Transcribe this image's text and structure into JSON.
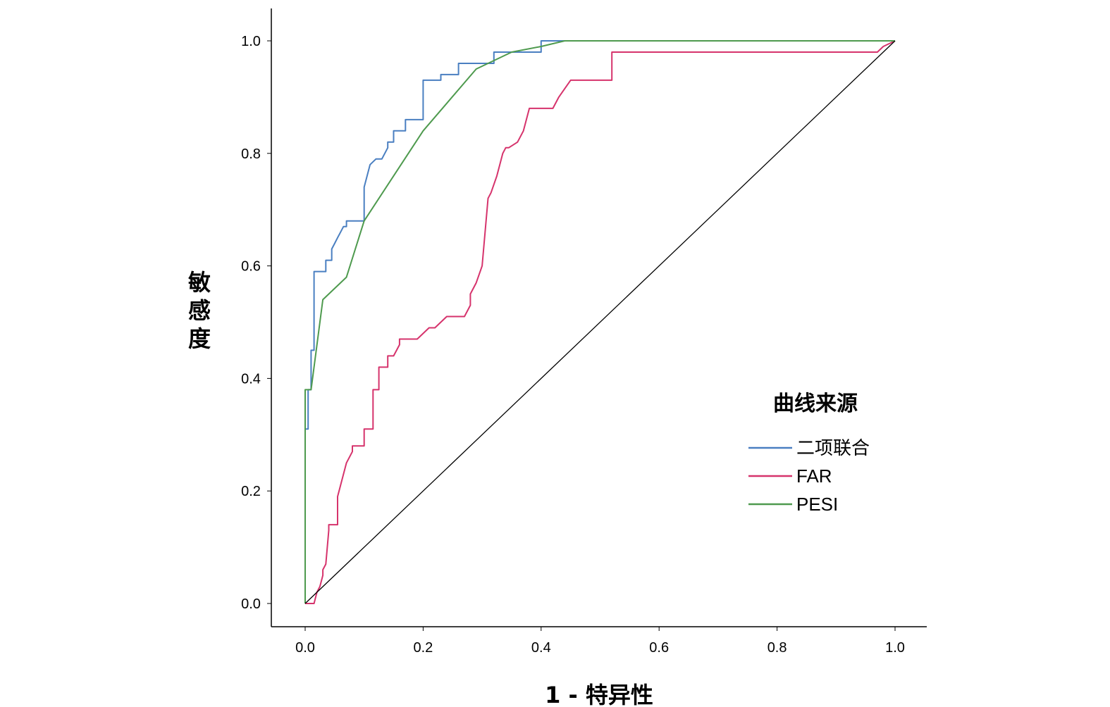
{
  "chart_data": {
    "type": "line",
    "title": "",
    "xlabel": "1 - 特异性",
    "ylabel": "敏感度",
    "xlim": [
      0,
      1
    ],
    "ylim": [
      0,
      1
    ],
    "xticks": [
      "0.0",
      "0.2",
      "0.4",
      "0.6",
      "0.8",
      "1.0"
    ],
    "yticks": [
      "0.0",
      "0.2",
      "0.4",
      "0.6",
      "0.8",
      "1.0"
    ],
    "grid": false,
    "legend_title": "曲线来源",
    "legend_position": "right",
    "series": [
      {
        "name": "二项联合",
        "color": "#4a7fc1",
        "x": [
          0,
          0,
          0.005,
          0.005,
          0.01,
          0.01,
          0.015,
          0.015,
          0.035,
          0.035,
          0.045,
          0.045,
          0.05,
          0.055,
          0.06,
          0.065,
          0.07,
          0.07,
          0.1,
          0.1,
          0.105,
          0.11,
          0.12,
          0.13,
          0.14,
          0.14,
          0.15,
          0.15,
          0.17,
          0.17,
          0.2,
          0.2,
          0.23,
          0.23,
          0.26,
          0.26,
          0.32,
          0.32,
          0.4,
          0.4,
          0.44,
          1.0
        ],
        "y": [
          0,
          0.31,
          0.31,
          0.38,
          0.38,
          0.45,
          0.45,
          0.59,
          0.59,
          0.61,
          0.61,
          0.63,
          0.64,
          0.65,
          0.66,
          0.67,
          0.67,
          0.68,
          0.68,
          0.74,
          0.76,
          0.78,
          0.79,
          0.79,
          0.81,
          0.82,
          0.82,
          0.84,
          0.84,
          0.86,
          0.86,
          0.93,
          0.93,
          0.94,
          0.94,
          0.96,
          0.96,
          0.98,
          0.98,
          1.0,
          1.0,
          1.0
        ]
      },
      {
        "name": "FAR",
        "color": "#d6336c",
        "x": [
          0,
          0.015,
          0.02,
          0.025,
          0.03,
          0.03,
          0.035,
          0.04,
          0.04,
          0.055,
          0.055,
          0.06,
          0.07,
          0.08,
          0.08,
          0.1,
          0.1,
          0.115,
          0.115,
          0.125,
          0.125,
          0.14,
          0.14,
          0.15,
          0.16,
          0.16,
          0.19,
          0.2,
          0.21,
          0.22,
          0.24,
          0.27,
          0.28,
          0.28,
          0.29,
          0.3,
          0.31,
          0.315,
          0.325,
          0.33,
          0.335,
          0.34,
          0.345,
          0.36,
          0.37,
          0.38,
          0.42,
          0.43,
          0.45,
          0.52,
          0.52,
          0.97,
          0.98,
          1.0
        ],
        "y": [
          0,
          0,
          0.02,
          0.03,
          0.05,
          0.06,
          0.07,
          0.13,
          0.14,
          0.14,
          0.19,
          0.21,
          0.25,
          0.27,
          0.28,
          0.28,
          0.31,
          0.31,
          0.38,
          0.38,
          0.42,
          0.42,
          0.44,
          0.44,
          0.46,
          0.47,
          0.47,
          0.48,
          0.49,
          0.49,
          0.51,
          0.51,
          0.53,
          0.55,
          0.57,
          0.6,
          0.72,
          0.73,
          0.76,
          0.78,
          0.8,
          0.81,
          0.81,
          0.82,
          0.84,
          0.88,
          0.88,
          0.9,
          0.93,
          0.93,
          0.98,
          0.98,
          0.99,
          1.0
        ]
      },
      {
        "name": "PESI",
        "color": "#4e9a4e",
        "x": [
          0,
          0,
          0.01,
          0.03,
          0.07,
          0.1,
          0.15,
          0.2,
          0.29,
          0.35,
          0.4,
          0.44,
          1.0
        ],
        "y": [
          0,
          0.38,
          0.38,
          0.54,
          0.58,
          0.68,
          0.76,
          0.84,
          0.95,
          0.98,
          0.99,
          1.0,
          1.0
        ]
      },
      {
        "name": "",
        "color": "#000000",
        "x": [
          0,
          1
        ],
        "y": [
          0,
          1
        ]
      }
    ]
  }
}
